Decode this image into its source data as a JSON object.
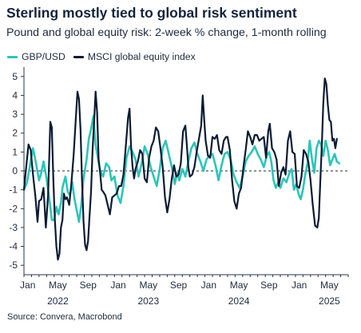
{
  "title": "Sterling mostly tied to global risk sentiment",
  "subtitle": "Pound and global equity risk: 2-week % change, 1-month rolling",
  "source": "Source: Convera, Macrobond",
  "chart_data": {
    "type": "line",
    "title": "Sterling mostly tied to global risk sentiment",
    "subtitle": "Pound and global equity risk: 2-week % change, 1-month rolling",
    "ylim": [
      -5.5,
      5.5
    ],
    "yticks": [
      5,
      4,
      3,
      2,
      1,
      0,
      -1,
      -2,
      -3,
      -4,
      -5
    ],
    "xlim": [
      0,
      43
    ],
    "xticks": [
      {
        "month": 0,
        "label": "Jan"
      },
      {
        "month": 4,
        "label": "May"
      },
      {
        "month": 8,
        "label": "Sep"
      },
      {
        "month": 12,
        "label": "Jan"
      },
      {
        "month": 16,
        "label": "May"
      },
      {
        "month": 20,
        "label": "Sep"
      },
      {
        "month": 24,
        "label": "Jan"
      },
      {
        "month": 28,
        "label": "May"
      },
      {
        "month": 32,
        "label": "Sep"
      },
      {
        "month": 36,
        "label": "Jan"
      },
      {
        "month": 40,
        "label": "May"
      }
    ],
    "years": [
      {
        "month": 4,
        "label": "2022"
      },
      {
        "month": 16,
        "label": "2023"
      },
      {
        "month": 28,
        "label": "2024"
      },
      {
        "month": 40,
        "label": "2025"
      }
    ],
    "zero_line": "dashed",
    "legend_position": "top-left",
    "series": [
      {
        "name": "GBP/USD",
        "color": "#2ec4b6",
        "points": [
          [
            0,
            -1.0
          ],
          [
            0.4,
            -0.6
          ],
          [
            0.8,
            0.3
          ],
          [
            1.2,
            1.2
          ],
          [
            1.6,
            0.4
          ],
          [
            2.0,
            -0.5
          ],
          [
            2.3,
            -0.1
          ],
          [
            2.6,
            0.5
          ],
          [
            3.0,
            -0.4
          ],
          [
            3.4,
            -1.6
          ],
          [
            3.7,
            -2.6
          ],
          [
            4.0,
            -2.6
          ],
          [
            4.3,
            -1.9
          ],
          [
            4.6,
            -2.3
          ],
          [
            4.9,
            -1.7
          ],
          [
            5.1,
            -0.9
          ],
          [
            5.5,
            -0.3
          ],
          [
            5.8,
            -1.1
          ],
          [
            6.1,
            -1.3
          ],
          [
            6.4,
            -0.6
          ],
          [
            6.7,
            -1.5
          ],
          [
            7.0,
            -2.1
          ],
          [
            7.3,
            -2.7
          ],
          [
            7.6,
            -1.8
          ],
          [
            7.9,
            -0.4
          ],
          [
            8.3,
            0.6
          ],
          [
            8.6,
            1.7
          ],
          [
            8.9,
            2.2
          ],
          [
            9.2,
            2.9
          ],
          [
            9.5,
            1.4
          ],
          [
            9.8,
            0.7
          ],
          [
            10.1,
            0.0
          ],
          [
            10.5,
            -0.3
          ],
          [
            10.9,
            0.4
          ],
          [
            11.3,
            0.2
          ],
          [
            11.6,
            -0.5
          ],
          [
            12.0,
            -0.3
          ],
          [
            12.4,
            -1.3
          ],
          [
            12.8,
            -1.7
          ],
          [
            13.2,
            -0.8
          ],
          [
            13.6,
            0.7
          ],
          [
            14.0,
            1.3
          ],
          [
            14.4,
            1.0
          ],
          [
            14.8,
            0.6
          ],
          [
            15.2,
            -0.3
          ],
          [
            15.6,
            0.4
          ],
          [
            16.0,
            1.3
          ],
          [
            16.4,
            0.9
          ],
          [
            16.8,
            0.2
          ],
          [
            17.2,
            -0.3
          ],
          [
            17.6,
            -0.8
          ],
          [
            18.0,
            0.1
          ],
          [
            18.4,
            1.2
          ],
          [
            18.8,
            1.6
          ],
          [
            19.2,
            0.9
          ],
          [
            19.6,
            0.2
          ],
          [
            20.0,
            -0.7
          ],
          [
            20.3,
            -0.1
          ],
          [
            20.6,
            -0.5
          ],
          [
            21.0,
            0.1
          ],
          [
            21.4,
            -0.3
          ],
          [
            21.8,
            0.5
          ],
          [
            22.2,
            1.2
          ],
          [
            22.6,
            1.5
          ],
          [
            23.0,
            0.9
          ],
          [
            23.4,
            0.5
          ],
          [
            23.8,
            0.0
          ],
          [
            24.2,
            0.6
          ],
          [
            24.6,
            0.8
          ],
          [
            25.0,
            0.9
          ],
          [
            25.4,
            0.3
          ],
          [
            25.8,
            -0.5
          ],
          [
            26.2,
            0.3
          ],
          [
            26.6,
            0.9
          ],
          [
            27.0,
            1.0
          ],
          [
            27.4,
            0.6
          ],
          [
            27.8,
            -0.2
          ],
          [
            28.2,
            -0.6
          ],
          [
            28.6,
            -0.9
          ],
          [
            29.0,
            -0.3
          ],
          [
            29.4,
            0.5
          ],
          [
            29.8,
            0.8
          ],
          [
            30.2,
            1.0
          ],
          [
            30.6,
            1.3
          ],
          [
            31.0,
            0.9
          ],
          [
            31.4,
            0.6
          ],
          [
            31.8,
            0.2
          ],
          [
            32.2,
            0.8
          ],
          [
            32.5,
            1.0
          ],
          [
            32.8,
            0.5
          ],
          [
            33.1,
            -0.5
          ],
          [
            33.4,
            -0.9
          ],
          [
            33.7,
            -0.6
          ],
          [
            34.0,
            -0.9
          ],
          [
            34.4,
            -0.4
          ],
          [
            34.8,
            -0.6
          ],
          [
            35.2,
            -0.1
          ],
          [
            35.5,
            0.1
          ],
          [
            35.8,
            -1.0
          ],
          [
            36.1,
            -0.7
          ],
          [
            36.4,
            -1.2
          ],
          [
            36.7,
            -1.5
          ],
          [
            37.0,
            -1.0
          ],
          [
            37.3,
            -0.2
          ],
          [
            37.6,
            0.4
          ],
          [
            37.9,
            1.6
          ],
          [
            38.2,
            0.6
          ],
          [
            38.5,
            -0.1
          ],
          [
            38.8,
            1.2
          ],
          [
            39.1,
            1.6
          ],
          [
            39.4,
            1.4
          ],
          [
            39.7,
            0.8
          ],
          [
            40.0,
            1.6
          ],
          [
            40.3,
            1.1
          ],
          [
            40.6,
            0.3
          ],
          [
            40.9,
            0.6
          ],
          [
            41.2,
            0.9
          ],
          [
            41.5,
            0.5
          ],
          [
            41.8,
            0.4
          ]
        ]
      },
      {
        "name": "MSCI global equity index",
        "color": "#0b1b33",
        "points": [
          [
            0,
            -1.0
          ],
          [
            0.3,
            0.2
          ],
          [
            0.6,
            1.4
          ],
          [
            0.9,
            1.1
          ],
          [
            1.2,
            -0.2
          ],
          [
            1.5,
            -1.3
          ],
          [
            1.8,
            -2.7
          ],
          [
            2.0,
            -1.6
          ],
          [
            2.3,
            -1.5
          ],
          [
            2.6,
            -0.9
          ],
          [
            2.9,
            -3.0
          ],
          [
            3.2,
            -1.3
          ],
          [
            3.5,
            2.6
          ],
          [
            3.7,
            2.3
          ],
          [
            3.9,
            -0.5
          ],
          [
            4.1,
            -2.6
          ],
          [
            4.3,
            -4.0
          ],
          [
            4.5,
            -4.7
          ],
          [
            4.7,
            -4.4
          ],
          [
            4.9,
            -3.0
          ],
          [
            5.1,
            -2.6
          ],
          [
            5.3,
            -1.2
          ],
          [
            5.5,
            -1.5
          ],
          [
            5.7,
            -1.4
          ],
          [
            6.0,
            -1.8
          ],
          [
            6.3,
            -0.6
          ],
          [
            6.6,
            0.9
          ],
          [
            6.9,
            2.9
          ],
          [
            7.1,
            4.2
          ],
          [
            7.3,
            3.8
          ],
          [
            7.5,
            2.2
          ],
          [
            7.7,
            -0.5
          ],
          [
            7.9,
            -2.7
          ],
          [
            8.1,
            -3.9
          ],
          [
            8.3,
            -4.2
          ],
          [
            8.5,
            -3.7
          ],
          [
            8.7,
            -2.4
          ],
          [
            8.9,
            -1.1
          ],
          [
            9.1,
            1.1
          ],
          [
            9.3,
            2.6
          ],
          [
            9.5,
            4.2
          ],
          [
            9.7,
            3.1
          ],
          [
            9.9,
            0.6
          ],
          [
            10.1,
            -0.1
          ],
          [
            10.3,
            -1.0
          ],
          [
            10.5,
            -1.1
          ],
          [
            10.8,
            -1.3
          ],
          [
            11.1,
            -1.8
          ],
          [
            11.4,
            -2.3
          ],
          [
            11.7,
            -1.4
          ],
          [
            12.0,
            -1.3
          ],
          [
            12.3,
            -1.2
          ],
          [
            12.6,
            -0.8
          ],
          [
            12.9,
            -0.8
          ],
          [
            13.2,
            -0.2
          ],
          [
            13.5,
            1.3
          ],
          [
            13.8,
            2.8
          ],
          [
            14.0,
            3.3
          ],
          [
            14.2,
            1.3
          ],
          [
            14.4,
            0.2
          ],
          [
            14.6,
            -0.4
          ],
          [
            14.8,
            0.1
          ],
          [
            15.1,
            0.5
          ],
          [
            15.4,
            1.1
          ],
          [
            15.7,
            0.9
          ],
          [
            16.0,
            -0.4
          ],
          [
            16.3,
            -0.6
          ],
          [
            16.6,
            0.7
          ],
          [
            16.9,
            1.3
          ],
          [
            17.2,
            1.6
          ],
          [
            17.5,
            2.3
          ],
          [
            17.8,
            2.1
          ],
          [
            18.1,
            1.2
          ],
          [
            18.4,
            0.2
          ],
          [
            18.7,
            -1.4
          ],
          [
            19.0,
            -2.2
          ],
          [
            19.3,
            -1.5
          ],
          [
            19.6,
            -0.4
          ],
          [
            19.9,
            0.3
          ],
          [
            20.2,
            -0.3
          ],
          [
            20.5,
            -0.2
          ],
          [
            20.8,
            0.4
          ],
          [
            21.1,
            2.1
          ],
          [
            21.4,
            2.4
          ],
          [
            21.6,
            1.4
          ],
          [
            21.8,
            0.2
          ],
          [
            22.0,
            -0.3
          ],
          [
            22.3,
            -0.2
          ],
          [
            22.6,
            0.2
          ],
          [
            22.9,
            1.0
          ],
          [
            23.2,
            1.7
          ],
          [
            23.5,
            2.4
          ],
          [
            23.7,
            4.0
          ],
          [
            23.9,
            2.7
          ],
          [
            24.1,
            1.6
          ],
          [
            24.4,
            0.8
          ],
          [
            24.7,
            0.7
          ],
          [
            25.0,
            1.8
          ],
          [
            25.3,
            1.7
          ],
          [
            25.6,
            1.9
          ],
          [
            25.9,
            1.1
          ],
          [
            26.2,
            0.9
          ],
          [
            26.5,
            1.6
          ],
          [
            26.8,
            1.8
          ],
          [
            27.0,
            1.8
          ],
          [
            27.3,
            1.1
          ],
          [
            27.6,
            -0.5
          ],
          [
            27.9,
            -1.6
          ],
          [
            28.2,
            -2.0
          ],
          [
            28.5,
            -1.2
          ],
          [
            28.8,
            -0.9
          ],
          [
            29.1,
            0.2
          ],
          [
            29.4,
            1.1
          ],
          [
            29.7,
            2.1
          ],
          [
            30.0,
            1.8
          ],
          [
            30.3,
            1.4
          ],
          [
            30.6,
            1.9
          ],
          [
            30.9,
            1.9
          ],
          [
            31.2,
            1.6
          ],
          [
            31.5,
            1.7
          ],
          [
            31.8,
            1.8
          ],
          [
            32.1,
            0.7
          ],
          [
            32.4,
            2.1
          ],
          [
            32.6,
            2.5
          ],
          [
            32.9,
            1.2
          ],
          [
            33.2,
            1.0
          ],
          [
            33.5,
            0.6
          ],
          [
            33.8,
            -0.8
          ],
          [
            34.1,
            -0.1
          ],
          [
            34.4,
            0.2
          ],
          [
            34.7,
            -0.2
          ],
          [
            35.0,
            1.6
          ],
          [
            35.3,
            2.1
          ],
          [
            35.6,
            1.0
          ],
          [
            35.9,
            0.9
          ],
          [
            36.2,
            -0.8
          ],
          [
            36.5,
            -0.9
          ],
          [
            36.8,
            -0.3
          ],
          [
            37.1,
            1.1
          ],
          [
            37.4,
            0.9
          ],
          [
            37.7,
            0.5
          ],
          [
            38.0,
            -0.5
          ],
          [
            38.3,
            -1.8
          ],
          [
            38.6,
            -2.9
          ],
          [
            38.9,
            -3.0
          ],
          [
            39.1,
            -2.5
          ],
          [
            39.3,
            -0.5
          ],
          [
            39.5,
            1.4
          ],
          [
            39.7,
            3.6
          ],
          [
            39.9,
            4.9
          ],
          [
            40.1,
            4.6
          ],
          [
            40.3,
            3.5
          ],
          [
            40.5,
            2.7
          ],
          [
            40.7,
            2.6
          ],
          [
            40.9,
            1.6
          ],
          [
            41.1,
            1.7
          ],
          [
            41.3,
            1.2
          ],
          [
            41.5,
            1.7
          ]
        ]
      }
    ]
  }
}
